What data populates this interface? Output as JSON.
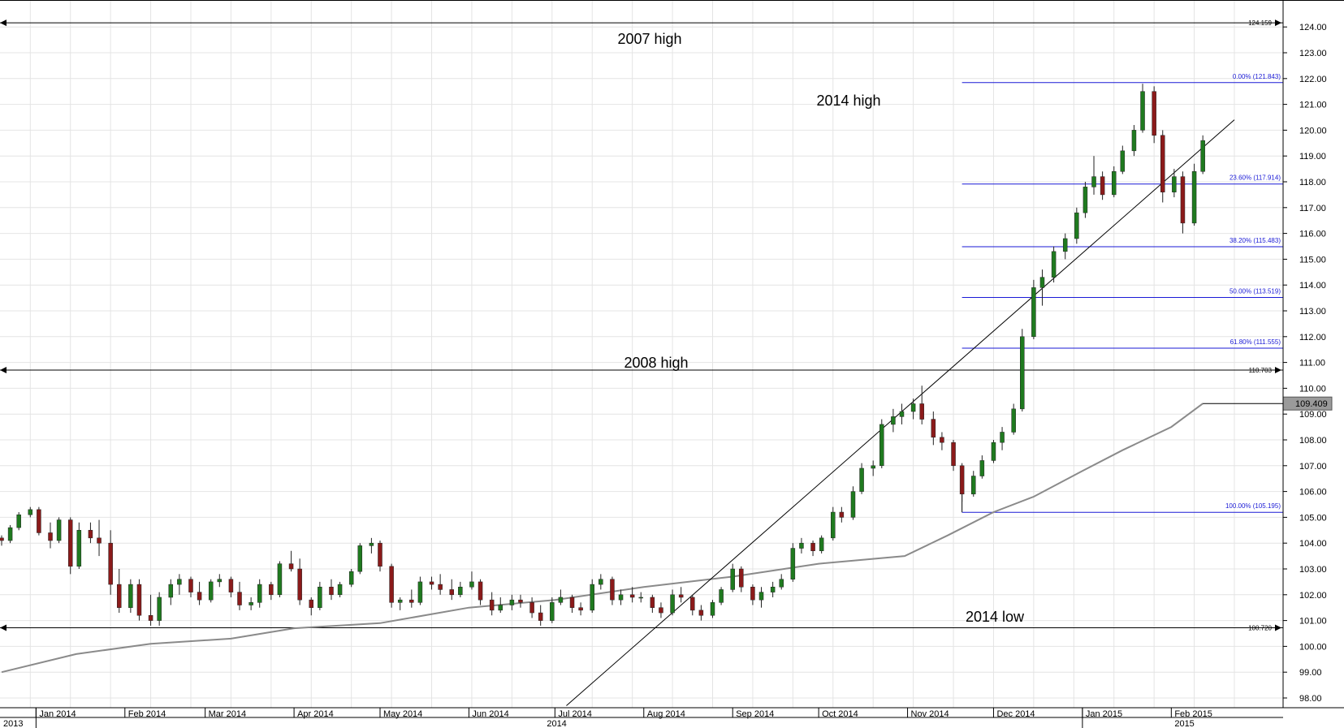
{
  "chart_data": {
    "type": "candlestick",
    "title": "",
    "y_axis": {
      "range": [
        97.7,
        124.7
      ],
      "ticks": [
        "98.00",
        "99.00",
        "100.00",
        "101.00",
        "102.00",
        "103.00",
        "104.00",
        "105.00",
        "106.00",
        "107.00",
        "108.00",
        "109.00",
        "110.00",
        "111.00",
        "112.00",
        "113.00",
        "114.00",
        "115.00",
        "116.00",
        "117.00",
        "118.00",
        "119.00",
        "120.00",
        "121.00",
        "122.00",
        "123.00",
        "124.00"
      ],
      "position": "right"
    },
    "x_axis": {
      "months": [
        "Jan 2014",
        "Feb 2014",
        "Mar 2014",
        "Apr 2014",
        "May 2014",
        "Jun 2014",
        "Jul 2014",
        "Aug 2014",
        "Sep 2014",
        "Oct 2014",
        "Nov 2014",
        "Dec 2014",
        "Jan 2015",
        "Feb 2015"
      ],
      "years": [
        "2013",
        "2014",
        "2015"
      ]
    },
    "grid": true,
    "colors": {
      "up": "#1f7a1f",
      "down": "#8b1a1a",
      "fib": "#1a1ad6",
      "moving_average": "#8a8a8a",
      "trendline": "#000000"
    },
    "horizontal_levels": [
      {
        "value": 124.159,
        "label": "124.159",
        "annotation": "2007 high"
      },
      {
        "value": 110.703,
        "label": "110.703",
        "annotation": "2008 high"
      },
      {
        "value": 100.72,
        "label": "100.720",
        "annotation": "2014 low"
      }
    ],
    "fibonacci": [
      {
        "value": 121.843,
        "label": "0.00% (121.843)"
      },
      {
        "value": 117.914,
        "label": "23.60% (117.914)"
      },
      {
        "value": 115.483,
        "label": "38.20% (115.483)"
      },
      {
        "value": 113.519,
        "label": "50.00% (113.519)"
      },
      {
        "value": 111.555,
        "label": "61.80% (111.555)"
      },
      {
        "value": 105.195,
        "label": "100.00% (105.195)"
      }
    ],
    "annotations": [
      "2007 high",
      "2014 high",
      "2008 high",
      "2014 low"
    ],
    "current_price": "109.409",
    "moving_average": {
      "points": [
        [
          "2013-12-20",
          99.0
        ],
        [
          "2014-01-15",
          99.7
        ],
        [
          "2014-02-10",
          100.1
        ],
        [
          "2014-03-10",
          100.3
        ],
        [
          "2014-04-01",
          100.7
        ],
        [
          "2014-05-01",
          100.9
        ],
        [
          "2014-06-01",
          101.5
        ],
        [
          "2014-07-01",
          101.8
        ],
        [
          "2014-08-01",
          102.3
        ],
        [
          "2014-09-01",
          102.7
        ],
        [
          "2014-10-01",
          103.2
        ],
        [
          "2014-10-31",
          103.5
        ],
        [
          "2014-11-15",
          104.3
        ],
        [
          "2014-12-01",
          105.2
        ],
        [
          "2014-12-15",
          105.8
        ],
        [
          "2015-01-01",
          106.8
        ],
        [
          "2015-01-15",
          107.6
        ],
        [
          "2015-02-01",
          108.5
        ],
        [
          "2015-02-12",
          109.409
        ]
      ]
    },
    "trendline": {
      "from": [
        "2014-07-05",
        97.7
      ],
      "to": [
        "2015-02-23",
        120.4
      ]
    },
    "candles": [
      [
        "2013-12-20",
        104.2,
        104.3,
        103.9,
        104.1
      ],
      [
        "2013-12-23",
        104.1,
        104.7,
        104.0,
        104.6
      ],
      [
        "2013-12-26",
        104.6,
        105.2,
        104.5,
        105.1
      ],
      [
        "2013-12-30",
        105.1,
        105.4,
        105.0,
        105.3
      ],
      [
        "2014-01-02",
        105.3,
        105.4,
        104.3,
        104.4
      ],
      [
        "2014-01-06",
        104.4,
        104.8,
        103.8,
        104.1
      ],
      [
        "2014-01-09",
        104.1,
        105.0,
        104.0,
        104.9
      ],
      [
        "2014-01-13",
        104.9,
        105.0,
        102.8,
        103.1
      ],
      [
        "2014-01-16",
        103.1,
        104.8,
        103.0,
        104.5
      ],
      [
        "2014-01-20",
        104.5,
        104.8,
        104.0,
        104.2
      ],
      [
        "2014-01-23",
        104.2,
        104.9,
        103.5,
        104.0
      ],
      [
        "2014-01-27",
        104.0,
        104.5,
        102.0,
        102.4
      ],
      [
        "2014-01-30",
        102.4,
        103.0,
        101.3,
        101.5
      ],
      [
        "2014-02-03",
        101.5,
        102.6,
        101.3,
        102.4
      ],
      [
        "2014-02-06",
        102.4,
        102.6,
        101.0,
        101.2
      ],
      [
        "2014-02-10",
        101.2,
        102.0,
        100.8,
        101.0
      ],
      [
        "2014-02-13",
        101.0,
        102.1,
        100.8,
        101.9
      ],
      [
        "2014-02-17",
        101.9,
        102.6,
        101.6,
        102.4
      ],
      [
        "2014-02-20",
        102.4,
        102.8,
        102.0,
        102.6
      ],
      [
        "2014-02-24",
        102.6,
        102.7,
        101.9,
        102.1
      ],
      [
        "2014-02-27",
        102.1,
        102.5,
        101.6,
        101.8
      ],
      [
        "2014-03-03",
        101.8,
        102.6,
        101.7,
        102.5
      ],
      [
        "2014-03-06",
        102.5,
        102.8,
        102.3,
        102.6
      ],
      [
        "2014-03-10",
        102.6,
        102.7,
        101.9,
        102.1
      ],
      [
        "2014-03-13",
        102.1,
        102.5,
        101.4,
        101.6
      ],
      [
        "2014-03-17",
        101.6,
        101.9,
        101.4,
        101.7
      ],
      [
        "2014-03-20",
        101.7,
        102.6,
        101.5,
        102.4
      ],
      [
        "2014-03-24",
        102.4,
        102.5,
        101.8,
        102.0
      ],
      [
        "2014-03-27",
        102.0,
        103.3,
        101.9,
        103.2
      ],
      [
        "2014-03-31",
        103.2,
        103.7,
        102.9,
        103.0
      ],
      [
        "2014-04-03",
        103.0,
        103.4,
        101.6,
        101.8
      ],
      [
        "2014-04-07",
        101.8,
        101.9,
        101.2,
        101.5
      ],
      [
        "2014-04-10",
        101.5,
        102.5,
        101.4,
        102.3
      ],
      [
        "2014-04-14",
        102.3,
        102.6,
        101.8,
        102.0
      ],
      [
        "2014-04-17",
        102.0,
        102.5,
        101.9,
        102.4
      ],
      [
        "2014-04-21",
        102.4,
        103.0,
        102.3,
        102.9
      ],
      [
        "2014-04-24",
        102.9,
        104.0,
        102.8,
        103.9
      ],
      [
        "2014-04-28",
        103.9,
        104.2,
        103.6,
        104.0
      ],
      [
        "2014-05-01",
        104.0,
        104.1,
        102.9,
        103.1
      ],
      [
        "2014-05-05",
        103.1,
        103.2,
        101.5,
        101.7
      ],
      [
        "2014-05-08",
        101.7,
        101.9,
        101.4,
        101.8
      ],
      [
        "2014-05-12",
        101.8,
        102.2,
        101.5,
        101.7
      ],
      [
        "2014-05-15",
        101.7,
        102.7,
        101.6,
        102.5
      ],
      [
        "2014-05-19",
        102.5,
        102.7,
        102.2,
        102.4
      ],
      [
        "2014-05-22",
        102.4,
        102.8,
        102.0,
        102.2
      ],
      [
        "2014-05-26",
        102.2,
        102.6,
        101.8,
        102.0
      ],
      [
        "2014-05-29",
        102.0,
        102.5,
        101.9,
        102.3
      ],
      [
        "2014-06-02",
        102.3,
        102.9,
        102.2,
        102.5
      ],
      [
        "2014-06-05",
        102.5,
        102.6,
        101.6,
        101.8
      ],
      [
        "2014-06-09",
        101.8,
        102.1,
        101.2,
        101.4
      ],
      [
        "2014-06-12",
        101.4,
        101.9,
        101.3,
        101.6
      ],
      [
        "2014-06-16",
        101.6,
        102.0,
        101.4,
        101.8
      ],
      [
        "2014-06-19",
        101.8,
        102.0,
        101.5,
        101.7
      ],
      [
        "2014-06-23",
        101.7,
        101.9,
        101.1,
        101.3
      ],
      [
        "2014-06-26",
        101.3,
        101.6,
        100.8,
        101.0
      ],
      [
        "2014-06-30",
        101.0,
        101.9,
        100.9,
        101.7
      ],
      [
        "2014-07-03",
        101.7,
        102.2,
        101.6,
        101.9
      ],
      [
        "2014-07-07",
        101.9,
        102.0,
        101.3,
        101.5
      ],
      [
        "2014-07-10",
        101.5,
        101.7,
        101.2,
        101.4
      ],
      [
        "2014-07-14",
        101.4,
        102.6,
        101.3,
        102.4
      ],
      [
        "2014-07-17",
        102.4,
        102.8,
        102.2,
        102.6
      ],
      [
        "2014-07-21",
        102.6,
        102.7,
        101.6,
        101.8
      ],
      [
        "2014-07-24",
        101.8,
        102.2,
        101.6,
        102.0
      ],
      [
        "2014-07-28",
        102.0,
        102.3,
        101.7,
        101.9
      ],
      [
        "2014-07-31",
        101.9,
        102.1,
        101.7,
        101.9
      ],
      [
        "2014-08-04",
        101.9,
        102.0,
        101.3,
        101.5
      ],
      [
        "2014-08-07",
        101.5,
        101.7,
        101.1,
        101.3
      ],
      [
        "2014-08-11",
        101.3,
        102.2,
        101.2,
        102.0
      ],
      [
        "2014-08-14",
        102.0,
        102.3,
        101.7,
        101.9
      ],
      [
        "2014-08-18",
        101.9,
        102.0,
        101.2,
        101.4
      ],
      [
        "2014-08-21",
        101.4,
        101.6,
        101.0,
        101.2
      ],
      [
        "2014-08-25",
        101.2,
        101.8,
        101.1,
        101.7
      ],
      [
        "2014-08-28",
        101.7,
        102.3,
        101.6,
        102.2
      ],
      [
        "2014-09-01",
        102.2,
        103.2,
        102.1,
        103.0
      ],
      [
        "2014-09-04",
        103.0,
        103.1,
        102.1,
        102.3
      ],
      [
        "2014-09-08",
        102.3,
        102.4,
        101.6,
        101.8
      ],
      [
        "2014-09-11",
        101.8,
        102.3,
        101.5,
        102.1
      ],
      [
        "2014-09-15",
        102.1,
        102.5,
        101.9,
        102.3
      ],
      [
        "2014-09-18",
        102.3,
        102.8,
        102.2,
        102.6
      ],
      [
        "2014-09-22",
        102.6,
        104.0,
        102.5,
        103.8
      ],
      [
        "2014-09-25",
        103.8,
        104.2,
        103.6,
        104.0
      ],
      [
        "2014-09-29",
        104.0,
        104.1,
        103.5,
        103.7
      ],
      [
        "2014-10-02",
        103.7,
        104.3,
        103.6,
        104.2
      ],
      [
        "2014-10-06",
        104.2,
        105.4,
        104.1,
        105.2
      ],
      [
        "2014-10-09",
        105.2,
        105.4,
        104.8,
        105.0
      ],
      [
        "2014-10-13",
        105.0,
        106.2,
        104.9,
        106.0
      ],
      [
        "2014-10-16",
        106.0,
        107.1,
        105.9,
        106.9
      ],
      [
        "2014-10-20",
        106.9,
        107.2,
        106.6,
        107.0
      ],
      [
        "2014-10-23",
        107.0,
        108.8,
        106.9,
        108.6
      ],
      [
        "2014-10-27",
        108.6,
        109.2,
        108.3,
        108.9
      ],
      [
        "2014-10-30",
        108.9,
        109.4,
        108.6,
        109.1
      ],
      [
        "2014-11-03",
        109.1,
        109.6,
        108.8,
        109.4
      ],
      [
        "2014-11-06",
        109.4,
        110.1,
        108.6,
        108.8
      ],
      [
        "2014-11-10",
        108.8,
        109.1,
        107.8,
        108.1
      ],
      [
        "2014-11-13",
        108.1,
        108.3,
        107.6,
        107.9
      ],
      [
        "2014-11-17",
        107.9,
        108.0,
        106.8,
        107.0
      ],
      [
        "2014-11-20",
        107.0,
        107.1,
        105.6,
        105.9
      ],
      [
        "2014-11-24",
        105.9,
        106.8,
        105.8,
        106.6
      ],
      [
        "2014-11-27",
        106.6,
        107.4,
        106.5,
        107.2
      ],
      [
        "2014-12-01",
        107.2,
        108.0,
        107.1,
        107.9
      ],
      [
        "2014-12-04",
        107.9,
        108.5,
        107.6,
        108.3
      ],
      [
        "2014-12-08",
        108.3,
        109.4,
        108.2,
        109.2
      ],
      [
        "2014-12-11",
        109.2,
        112.3,
        109.1,
        112.0
      ],
      [
        "2014-12-15",
        112.0,
        114.2,
        111.9,
        113.9
      ],
      [
        "2014-12-18",
        113.9,
        114.6,
        113.2,
        114.3
      ],
      [
        "2014-12-22",
        114.3,
        115.5,
        114.1,
        115.3
      ],
      [
        "2014-12-26",
        115.3,
        116.0,
        115.0,
        115.8
      ],
      [
        "2014-12-30",
        115.8,
        117.0,
        115.6,
        116.8
      ],
      [
        "2015-01-02",
        116.8,
        118.0,
        116.6,
        117.8
      ],
      [
        "2015-01-05",
        117.8,
        119.0,
        117.5,
        118.2
      ],
      [
        "2015-01-08",
        118.2,
        118.4,
        117.3,
        117.5
      ],
      [
        "2015-01-12",
        117.5,
        118.6,
        117.4,
        118.4
      ],
      [
        "2015-01-15",
        118.4,
        119.4,
        118.3,
        119.2
      ],
      [
        "2015-01-19",
        119.2,
        120.2,
        119.0,
        120.0
      ],
      [
        "2015-01-22",
        120.0,
        121.8,
        119.9,
        121.5
      ],
      [
        "2015-01-26",
        121.5,
        121.7,
        119.5,
        119.8
      ],
      [
        "2015-01-29",
        119.8,
        120.0,
        117.2,
        117.6
      ],
      [
        "2015-02-02",
        117.6,
        118.5,
        117.4,
        118.2
      ],
      [
        "2015-02-05",
        118.2,
        118.4,
        116.0,
        116.4
      ],
      [
        "2015-02-09",
        116.4,
        118.7,
        116.3,
        118.4
      ],
      [
        "2015-02-12",
        118.4,
        119.8,
        118.3,
        119.6
      ]
    ]
  },
  "axis_labels": {
    "fib": [
      "0.00% (121.843)",
      "23.60% (117.914)",
      "38.20% (115.483)",
      "50.00% (113.519)",
      "61.80% (111.555)",
      "100.00% (105.195)"
    ]
  }
}
